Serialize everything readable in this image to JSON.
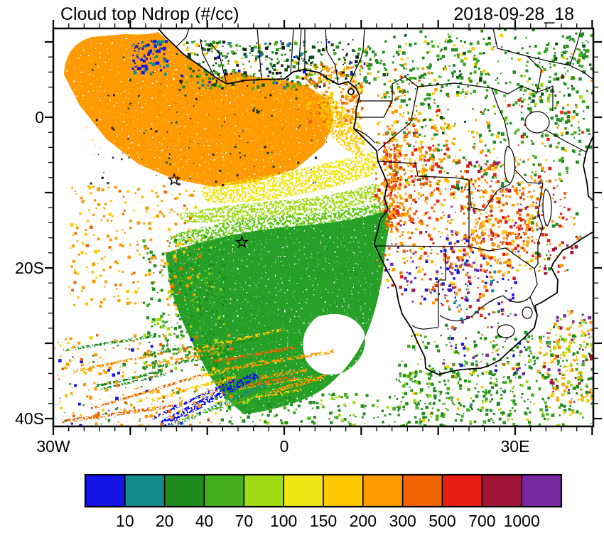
{
  "figure": {
    "title": "Cloud top Ndrop (#/cc)",
    "timestamp": "2018-09-28_18"
  },
  "chart_data": {
    "type": "heatmap",
    "title": "Cloud top Ndrop (#/cc)",
    "timestamp": "2018-09-28_18",
    "units": "#/cc",
    "x_axis": {
      "range_lon": [
        -30,
        40.2
      ],
      "tick_labels": [
        {
          "lon": -30,
          "label": "30W"
        },
        {
          "lon": 0,
          "label": "0"
        },
        {
          "lon": 30,
          "label": "30E"
        }
      ],
      "minor_tick_deg": 2
    },
    "y_axis": {
      "range_lat": [
        11.8,
        -41.0
      ],
      "tick_labels": [
        {
          "lat": 0,
          "label": "0"
        },
        {
          "lat": -20,
          "label": "20S"
        },
        {
          "lat": -40,
          "label": "40S"
        }
      ],
      "minor_tick_deg": 2
    },
    "colorbar": {
      "levels": [
        10,
        20,
        40,
        70,
        100,
        150,
        200,
        300,
        500,
        700,
        1000
      ],
      "colors": [
        "#1414E6",
        "#148C8C",
        "#1E8C1E",
        "#46AF1E",
        "#A0DC14",
        "#F0E614",
        "#FFC800",
        "#FF9B00",
        "#F06400",
        "#E61E14",
        "#A01437",
        "#7828A0"
      ]
    },
    "markers": [
      {
        "type": "open-star",
        "lon": -14.3,
        "lat": -8.3
      },
      {
        "type": "open-star",
        "lon": -5.5,
        "lat": -16.6
      }
    ],
    "regions_summary": [
      {
        "area": "NE tropical Atlantic (NW of map)",
        "dominant_values": "150-500 #/cc (orange)"
      },
      {
        "area": "transition band near 10S",
        "dominant_values": "70-150 #/cc (yellow / yellow-green)"
      },
      {
        "area": "SE Atlantic stratocumulus deck 12S-35S",
        "dominant_values": "20-70 #/cc (green)"
      },
      {
        "area": "southern Africa interior",
        "dominant_values": "scattered 100-1000 #/cc (orange/red/purple)"
      },
      {
        "area": "SW corner streaks",
        "dominant_values": "mixed 10-300 #/cc incl. blue streak <20"
      }
    ]
  }
}
